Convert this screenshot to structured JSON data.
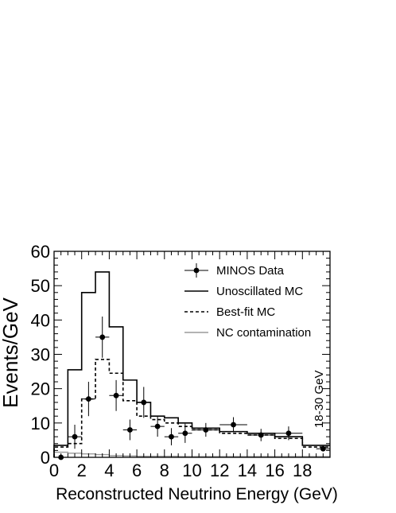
{
  "chart_data": {
    "type": "line",
    "title": "",
    "xlabel": "Reconstructed Neutrino Energy (GeV)",
    "ylabel": "Events/GeV",
    "xlim": [
      0,
      20
    ],
    "ylim": [
      0,
      60
    ],
    "xticks": [
      0,
      2,
      4,
      6,
      8,
      10,
      12,
      14,
      16,
      18
    ],
    "yticks": [
      0,
      10,
      20,
      30,
      40,
      50,
      60
    ],
    "annotation": "18-30 GeV",
    "legend_position": "top-right",
    "grid": false,
    "series": [
      {
        "name": "MINOS Data",
        "kind": "points-with-errors",
        "color": "#000000",
        "points": [
          {
            "x": 0.5,
            "y": 0,
            "xerr": 0.5,
            "yerr": 0.8
          },
          {
            "x": 1.5,
            "y": 6,
            "xerr": 0.5,
            "yerr": 3.5
          },
          {
            "x": 2.5,
            "y": 17,
            "xerr": 0.5,
            "yerr": 5
          },
          {
            "x": 3.5,
            "y": 35,
            "xerr": 0.5,
            "yerr": 6
          },
          {
            "x": 4.5,
            "y": 18,
            "xerr": 0.5,
            "yerr": 4.5
          },
          {
            "x": 5.5,
            "y": 8,
            "xerr": 0.5,
            "yerr": 3
          },
          {
            "x": 6.5,
            "y": 16,
            "xerr": 0.5,
            "yerr": 4.5
          },
          {
            "x": 7.5,
            "y": 9,
            "xerr": 0.5,
            "yerr": 3
          },
          {
            "x": 8.5,
            "y": 6,
            "xerr": 0.5,
            "yerr": 2.5
          },
          {
            "x": 9.5,
            "y": 7,
            "xerr": 0.5,
            "yerr": 2.8
          },
          {
            "x": 11,
            "y": 8,
            "xerr": 1,
            "yerr": 2
          },
          {
            "x": 13,
            "y": 9.5,
            "xerr": 1,
            "yerr": 2.2
          },
          {
            "x": 15,
            "y": 6.5,
            "xerr": 1,
            "yerr": 1.8
          },
          {
            "x": 17,
            "y": 7,
            "xerr": 1,
            "yerr": 2
          },
          {
            "x": 19.5,
            "y": 2.5,
            "xerr": 0.5,
            "yerr": 0.5
          }
        ]
      },
      {
        "name": "Unoscillated MC",
        "kind": "step",
        "color": "#000000",
        "style": "solid",
        "edges": [
          0,
          1,
          2,
          3,
          4,
          5,
          6,
          7,
          8,
          9,
          10,
          12,
          14,
          16,
          18,
          20
        ],
        "values": [
          3.5,
          25.5,
          48,
          54,
          38,
          22.5,
          16,
          12,
          11.5,
          10,
          8.5,
          7.5,
          7,
          6,
          3.5
        ]
      },
      {
        "name": "Best-fit MC",
        "kind": "step",
        "color": "#000000",
        "style": "dashed",
        "edges": [
          0,
          1,
          2,
          3,
          4,
          5,
          6,
          7,
          8,
          9,
          10,
          12,
          14,
          16,
          18,
          20
        ],
        "values": [
          3,
          4,
          17,
          28.5,
          24.5,
          16.5,
          12,
          11,
          10,
          9,
          8,
          7,
          6.5,
          5.5,
          3
        ]
      },
      {
        "name": "NC contamination",
        "kind": "step",
        "color": "#9a9a9a",
        "style": "solid",
        "edges": [
          0,
          1,
          2,
          3,
          4,
          5,
          6,
          7,
          8,
          9,
          10,
          12,
          14,
          16,
          18,
          20
        ],
        "values": [
          1.5,
          1.2,
          1,
          0.8,
          0.5,
          0.4,
          0.3,
          0.3,
          0.3,
          0.2,
          0.2,
          0.2,
          0.2,
          0.2,
          0.2
        ]
      }
    ]
  }
}
